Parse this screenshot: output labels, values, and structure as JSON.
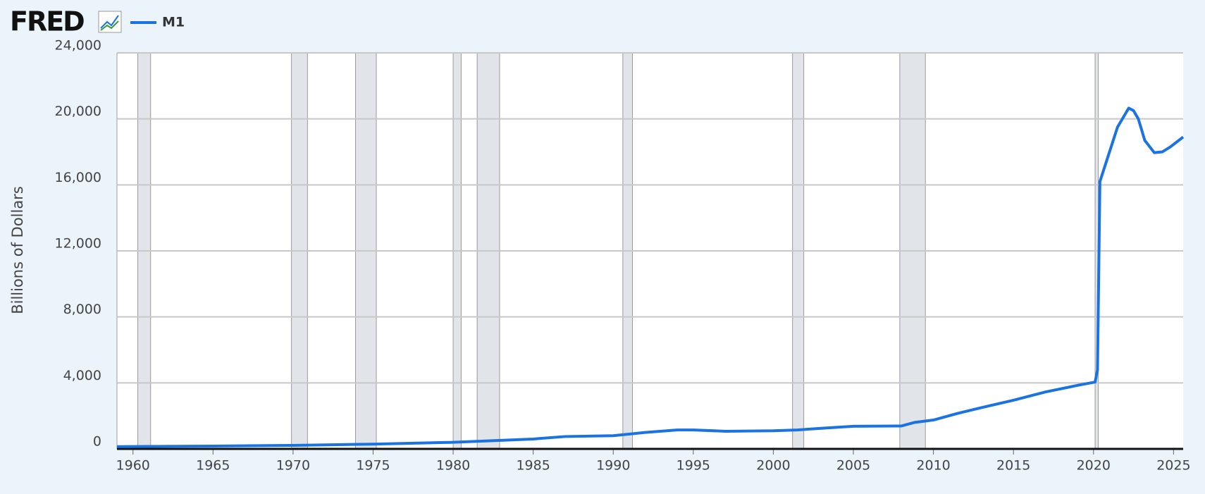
{
  "logo": "FRED",
  "chart_data": {
    "type": "line",
    "legend": "top-left",
    "ylabel": "Billions of Dollars",
    "x": [
      1959,
      1965,
      1970,
      1975,
      1980,
      1985,
      1987,
      1990,
      1992,
      1994,
      1995,
      1997,
      2000,
      2001.5,
      2003,
      2005,
      2008,
      2008.8,
      2010,
      2011.5,
      2013,
      2015,
      2017,
      2019,
      2020.1,
      2020.25,
      2020.4,
      2020.6,
      2021,
      2021.5,
      2022.2,
      2022.5,
      2022.8,
      2023.2,
      2023.8,
      2024.3,
      2024.8,
      2025.6
    ],
    "series": [
      {
        "name": "M1",
        "color": "#1a73e0",
        "values": [
          140,
          170,
          215,
          290,
          400,
          600,
          750,
          800,
          1000,
          1150,
          1150,
          1070,
          1100,
          1150,
          1250,
          1370,
          1390,
          1600,
          1750,
          2150,
          2500,
          2950,
          3450,
          3850,
          4050,
          4800,
          16200,
          16800,
          18000,
          19500,
          20650,
          20500,
          20000,
          18700,
          17950,
          18000,
          18300,
          18900
        ]
      }
    ],
    "recessions": [
      [
        1960.3,
        1961.1
      ],
      [
        1969.9,
        1970.9
      ],
      [
        1973.9,
        1975.2
      ],
      [
        1980.0,
        1980.5
      ],
      [
        1981.5,
        1982.9
      ],
      [
        1990.6,
        1991.2
      ],
      [
        2001.2,
        2001.9
      ],
      [
        2007.9,
        2009.5
      ],
      [
        2020.1,
        2020.3
      ]
    ],
    "xlim": [
      1959,
      2025.6
    ],
    "xticks": [
      1960,
      1965,
      1970,
      1975,
      1980,
      1985,
      1990,
      1995,
      2000,
      2005,
      2010,
      2015,
      2020,
      2025
    ],
    "ylim": [
      0,
      24000
    ],
    "yticks": [
      0,
      {
        "value": 4000,
        "label": "4,000"
      },
      {
        "value": 8000,
        "label": "8,000"
      },
      {
        "value": 12000,
        "label": "12,000"
      },
      {
        "value": 16000,
        "label": "16,000"
      },
      {
        "value": 20000,
        "label": "20,000"
      },
      {
        "value": 24000,
        "label": "24,000"
      }
    ],
    "grid": true
  }
}
